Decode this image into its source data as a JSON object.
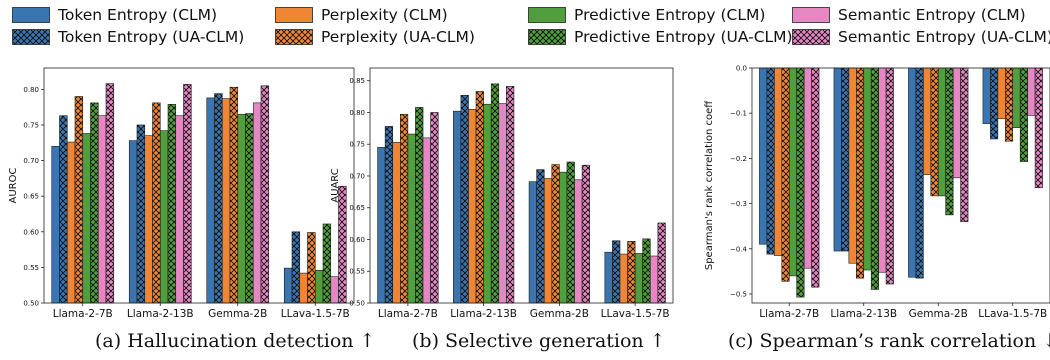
{
  "legend": [
    {
      "label": "Token Entropy (CLM)",
      "color": "#3b75af",
      "hatch": false
    },
    {
      "label": "Token Entropy (UA-CLM)",
      "color": "#3b75af",
      "hatch": true
    },
    {
      "label": "Perplexity (CLM)",
      "color": "#ef8636",
      "hatch": false
    },
    {
      "label": "Perplexity (UA-CLM)",
      "color": "#ef8636",
      "hatch": true
    },
    {
      "label": "Predictive Entropy (CLM)",
      "color": "#519e3e",
      "hatch": false
    },
    {
      "label": "Predictive Entropy (UA-CLM)",
      "color": "#519e3e",
      "hatch": true
    },
    {
      "label": "Semantic Entropy (CLM)",
      "color": "#e487c2",
      "hatch": false
    },
    {
      "label": "Semantic Entropy (UA-CLM)",
      "color": "#e487c2",
      "hatch": true
    }
  ],
  "chart_data": [
    {
      "type": "bar",
      "title": "",
      "caption": "(a) Hallucination detection ↑",
      "xlabel": "",
      "ylabel": "AUROC",
      "ylim": [
        0.5,
        0.83
      ],
      "yticks": [
        0.5,
        0.55,
        0.6,
        0.65,
        0.7,
        0.75,
        0.8
      ],
      "ytick_labels": [
        "0.50",
        "0.55",
        "0.60",
        "0.65",
        "0.70",
        "0.75",
        "0.80"
      ],
      "categories": [
        "Llama-2-7B",
        "Llama-2-13B",
        "Gemma-2B",
        "LLava-1.5-7B"
      ],
      "series": [
        {
          "name": "Token Entropy (CLM)",
          "values": [
            0.72,
            0.728,
            0.788,
            0.549
          ]
        },
        {
          "name": "Token Entropy (UA-CLM)",
          "values": [
            0.763,
            0.75,
            0.794,
            0.6
          ]
        },
        {
          "name": "Perplexity (CLM)",
          "values": [
            0.726,
            0.735,
            0.787,
            0.542
          ]
        },
        {
          "name": "Perplexity (UA-CLM)",
          "values": [
            0.79,
            0.781,
            0.803,
            0.599
          ]
        },
        {
          "name": "Predictive Entropy (CLM)",
          "values": [
            0.738,
            0.742,
            0.765,
            0.546
          ]
        },
        {
          "name": "Predictive Entropy (UA-CLM)",
          "values": [
            0.781,
            0.779,
            0.766,
            0.611
          ]
        },
        {
          "name": "Semantic Entropy (CLM)",
          "values": [
            0.763,
            0.763,
            0.781,
            0.537
          ]
        },
        {
          "name": "Semantic Entropy (UA-CLM)",
          "values": [
            0.808,
            0.807,
            0.805,
            0.664
          ]
        }
      ]
    },
    {
      "type": "bar",
      "title": "",
      "caption": "(b) Selective generation ↑",
      "xlabel": "",
      "ylabel": "AUARC",
      "ylim": [
        0.5,
        0.87
      ],
      "yticks": [
        0.5,
        0.55,
        0.6,
        0.65,
        0.7,
        0.75,
        0.8,
        0.85
      ],
      "ytick_labels": [
        "0.50",
        "0.55",
        "0.60",
        "0.65",
        "0.70",
        "0.75",
        "0.80",
        "0.85"
      ],
      "categories": [
        "Llama-2-7B",
        "Llama-2-13B",
        "Gemma-2B",
        "LLava-1.5-7B"
      ],
      "series": [
        {
          "name": "Token Entropy (CLM)",
          "values": [
            0.745,
            0.802,
            0.691,
            0.58
          ]
        },
        {
          "name": "Token Entropy (UA-CLM)",
          "values": [
            0.778,
            0.827,
            0.71,
            0.598
          ]
        },
        {
          "name": "Perplexity (CLM)",
          "values": [
            0.753,
            0.805,
            0.696,
            0.577
          ]
        },
        {
          "name": "Perplexity (UA-CLM)",
          "values": [
            0.797,
            0.833,
            0.718,
            0.597
          ]
        },
        {
          "name": "Predictive Entropy (CLM)",
          "values": [
            0.766,
            0.813,
            0.706,
            0.578
          ]
        },
        {
          "name": "Predictive Entropy (UA-CLM)",
          "values": [
            0.808,
            0.845,
            0.722,
            0.601
          ]
        },
        {
          "name": "Semantic Entropy (CLM)",
          "values": [
            0.76,
            0.814,
            0.694,
            0.574
          ]
        },
        {
          "name": "Semantic Entropy (UA-CLM)",
          "values": [
            0.8,
            0.841,
            0.717,
            0.626
          ]
        }
      ]
    },
    {
      "type": "bar",
      "title": "",
      "caption": "(c) Spearman’s rank correlation ↓",
      "xlabel": "",
      "ylabel": "Spearman's rank correlation coeff",
      "ylim": [
        -0.52,
        0.0
      ],
      "yticks": [
        0.0,
        -0.1,
        -0.2,
        -0.3,
        -0.4,
        -0.5
      ],
      "ytick_labels": [
        "0.0",
        "−0.1",
        "−0.2",
        "−0.3",
        "−0.4",
        "−0.5"
      ],
      "categories": [
        "Llama-2-7B",
        "Llama-2-13B",
        "Gemma-2B",
        "LLava-1.5-7B"
      ],
      "series": [
        {
          "name": "Token Entropy (CLM)",
          "values": [
            -0.39,
            -0.405,
            -0.463,
            -0.123
          ]
        },
        {
          "name": "Token Entropy (UA-CLM)",
          "values": [
            -0.412,
            -0.405,
            -0.465,
            -0.157
          ]
        },
        {
          "name": "Perplexity (CLM)",
          "values": [
            -0.415,
            -0.432,
            -0.236,
            -0.112
          ]
        },
        {
          "name": "Perplexity (UA-CLM)",
          "values": [
            -0.472,
            -0.465,
            -0.283,
            -0.162
          ]
        },
        {
          "name": "Predictive Entropy (CLM)",
          "values": [
            -0.46,
            -0.447,
            -0.283,
            -0.132
          ]
        },
        {
          "name": "Predictive Entropy (UA-CLM)",
          "values": [
            -0.507,
            -0.49,
            -0.325,
            -0.207
          ]
        },
        {
          "name": "Semantic Entropy (CLM)",
          "values": [
            -0.443,
            -0.452,
            -0.243,
            -0.105
          ]
        },
        {
          "name": "Semantic Entropy (UA-CLM)",
          "values": [
            -0.485,
            -0.478,
            -0.34,
            -0.265
          ]
        }
      ]
    }
  ]
}
